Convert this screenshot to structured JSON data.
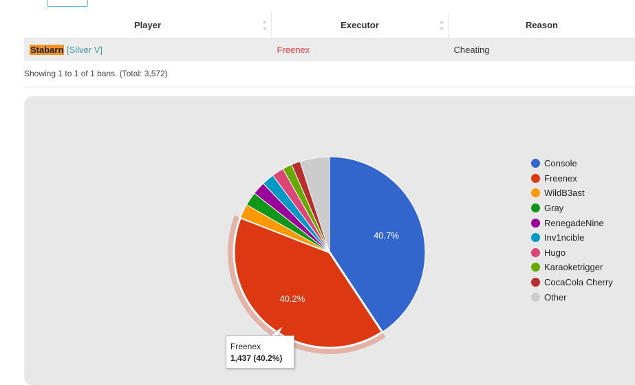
{
  "table": {
    "columns": [
      "Player",
      "Executor",
      "Reason"
    ],
    "rows": [
      {
        "player": "Stabarn",
        "rank": "[Silver V]",
        "executor": "Freenex",
        "reason": "Cheating"
      }
    ]
  },
  "showing": "Showing 1 to 1 of 1 bans. (Total: 3,572)",
  "chart_data": {
    "type": "pie",
    "slices": [
      {
        "label": "Console",
        "value": 40.7,
        "color": "#3366cc"
      },
      {
        "label": "Freenex",
        "value": 40.2,
        "color": "#dc3912"
      },
      {
        "label": "WildB3ast",
        "value": 2.4,
        "color": "#ff9900"
      },
      {
        "label": "Gray",
        "value": 2.3,
        "color": "#109618"
      },
      {
        "label": "RenegadeNine",
        "value": 2.2,
        "color": "#990099"
      },
      {
        "label": "Inv1ncible",
        "value": 2.1,
        "color": "#0099c6"
      },
      {
        "label": "Hugo",
        "value": 2.0,
        "color": "#dd4477"
      },
      {
        "label": "Karaoketrigger",
        "value": 1.6,
        "color": "#66aa00"
      },
      {
        "label": "CocaCola Cherry",
        "value": 1.5,
        "color": "#b82e2e"
      },
      {
        "label": "Other",
        "value": 5.0,
        "color": "#cccccc"
      }
    ],
    "slice_labels": [
      "40.7%",
      "40.2%"
    ],
    "highlighted": "Freenex",
    "legend_position": "right"
  },
  "tooltip": {
    "title": "Freenex",
    "value": "1,437 (40.2%)"
  }
}
